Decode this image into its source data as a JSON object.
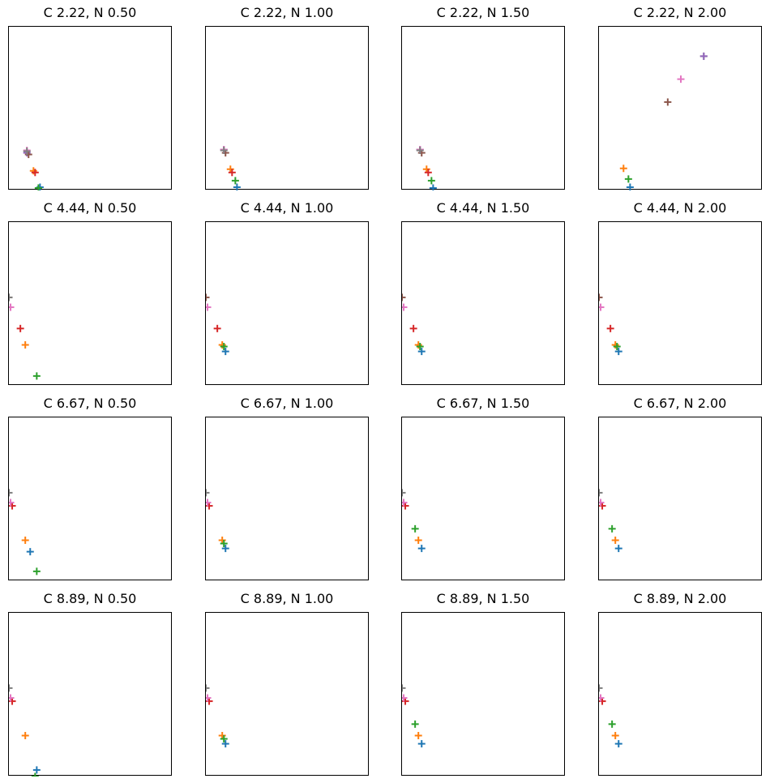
{
  "chart_data": [
    {
      "type": "scatter",
      "title": "C 2.22, N 0.50",
      "xticks": [],
      "yticks": [],
      "marker": "+",
      "points": [
        {
          "x": 0.19,
          "y": 0.02,
          "color": "#1f77b4"
        },
        {
          "x": 0.15,
          "y": 0.12,
          "color": "#ff7f0e"
        },
        {
          "x": 0.18,
          "y": 0.015,
          "color": "#2ca02c"
        },
        {
          "x": 0.16,
          "y": 0.11,
          "color": "#d62728"
        },
        {
          "x": 0.11,
          "y": 0.23,
          "color": "#9467bd"
        },
        {
          "x": 0.12,
          "y": 0.22,
          "color": "#8c564b"
        },
        {
          "x": 0.11,
          "y": 0.245,
          "color": "#e377c2"
        },
        {
          "x": 0.11,
          "y": 0.24,
          "color": "#7f7f7f"
        }
      ]
    },
    {
      "type": "scatter",
      "title": "C 2.22, N 1.00",
      "xticks": [],
      "yticks": [],
      "marker": "+",
      "points": [
        {
          "x": 0.19,
          "y": 0.02,
          "color": "#1f77b4"
        },
        {
          "x": 0.15,
          "y": 0.13,
          "color": "#ff7f0e"
        },
        {
          "x": 0.18,
          "y": 0.06,
          "color": "#2ca02c"
        },
        {
          "x": 0.16,
          "y": 0.11,
          "color": "#d62728"
        },
        {
          "x": 0.11,
          "y": 0.25,
          "color": "#9467bd"
        },
        {
          "x": 0.12,
          "y": 0.23,
          "color": "#8c564b"
        },
        {
          "x": 0.11,
          "y": 0.25,
          "color": "#e377c2"
        },
        {
          "x": 0.11,
          "y": 0.245,
          "color": "#7f7f7f"
        }
      ]
    },
    {
      "type": "scatter",
      "title": "C 2.22, N 1.50",
      "xticks": [],
      "yticks": [],
      "marker": "+",
      "points": [
        {
          "x": 0.19,
          "y": 0.015,
          "color": "#1f77b4"
        },
        {
          "x": 0.15,
          "y": 0.13,
          "color": "#ff7f0e"
        },
        {
          "x": 0.18,
          "y": 0.06,
          "color": "#2ca02c"
        },
        {
          "x": 0.16,
          "y": 0.11,
          "color": "#d62728"
        },
        {
          "x": 0.11,
          "y": 0.25,
          "color": "#9467bd"
        },
        {
          "x": 0.12,
          "y": 0.23,
          "color": "#8c564b"
        },
        {
          "x": 0.11,
          "y": 0.25,
          "color": "#e377c2"
        },
        {
          "x": 0.11,
          "y": 0.245,
          "color": "#7f7f7f"
        }
      ]
    },
    {
      "type": "scatter",
      "title": "C 2.22, N 2.00",
      "xticks": [],
      "yticks": [],
      "marker": "+",
      "points": [
        {
          "x": 0.19,
          "y": 0.02,
          "color": "#1f77b4"
        },
        {
          "x": 0.15,
          "y": 0.135,
          "color": "#ff7f0e"
        },
        {
          "x": 0.18,
          "y": 0.07,
          "color": "#2ca02c"
        },
        {
          "x": 0.42,
          "y": 0.54,
          "color": "#8c564b"
        },
        {
          "x": 0.5,
          "y": 0.68,
          "color": "#e377c2"
        },
        {
          "x": 0.64,
          "y": 0.82,
          "color": "#7f7f7f"
        },
        {
          "x": 0.64,
          "y": 0.82,
          "color": "#9467bd"
        }
      ]
    },
    {
      "type": "scatter",
      "title": "C 4.44, N 0.50",
      "xticks": [],
      "yticks": [],
      "marker": "+",
      "points": [
        {
          "x": 0.17,
          "y": 0.06,
          "color": "#2ca02c"
        },
        {
          "x": 0.1,
          "y": 0.25,
          "color": "#ff7f0e"
        },
        {
          "x": 0.07,
          "y": 0.35,
          "color": "#d62728"
        },
        {
          "x": 0.0,
          "y": 0.54,
          "color": "#8c564b"
        },
        {
          "x": 0.01,
          "y": 0.48,
          "color": "#e377c2"
        },
        {
          "x": 0.0,
          "y": 0.54,
          "color": "#7f7f7f"
        }
      ]
    },
    {
      "type": "scatter",
      "title": "C 4.44, N 1.00",
      "xticks": [],
      "yticks": [],
      "marker": "+",
      "points": [
        {
          "x": 0.12,
          "y": 0.21,
          "color": "#1f77b4"
        },
        {
          "x": 0.1,
          "y": 0.25,
          "color": "#ff7f0e"
        },
        {
          "x": 0.11,
          "y": 0.24,
          "color": "#2ca02c"
        },
        {
          "x": 0.07,
          "y": 0.35,
          "color": "#d62728"
        },
        {
          "x": 0.0,
          "y": 0.54,
          "color": "#8c564b"
        },
        {
          "x": 0.01,
          "y": 0.48,
          "color": "#e377c2"
        }
      ]
    },
    {
      "type": "scatter",
      "title": "C 4.44, N 1.50",
      "xticks": [],
      "yticks": [],
      "marker": "+",
      "points": [
        {
          "x": 0.12,
          "y": 0.21,
          "color": "#1f77b4"
        },
        {
          "x": 0.1,
          "y": 0.25,
          "color": "#ff7f0e"
        },
        {
          "x": 0.11,
          "y": 0.24,
          "color": "#2ca02c"
        },
        {
          "x": 0.07,
          "y": 0.35,
          "color": "#d62728"
        },
        {
          "x": 0.0,
          "y": 0.54,
          "color": "#8c564b"
        },
        {
          "x": 0.01,
          "y": 0.48,
          "color": "#e377c2"
        }
      ]
    },
    {
      "type": "scatter",
      "title": "C 4.44, N 2.00",
      "xticks": [],
      "yticks": [],
      "marker": "+",
      "points": [
        {
          "x": 0.12,
          "y": 0.21,
          "color": "#1f77b4"
        },
        {
          "x": 0.1,
          "y": 0.25,
          "color": "#ff7f0e"
        },
        {
          "x": 0.11,
          "y": 0.24,
          "color": "#2ca02c"
        },
        {
          "x": 0.07,
          "y": 0.35,
          "color": "#d62728"
        },
        {
          "x": 0.0,
          "y": 0.54,
          "color": "#8c564b"
        },
        {
          "x": 0.01,
          "y": 0.48,
          "color": "#e377c2"
        }
      ]
    },
    {
      "type": "scatter",
      "title": "C 6.67, N 0.50",
      "xticks": [],
      "yticks": [],
      "marker": "+",
      "points": [
        {
          "x": 0.13,
          "y": 0.18,
          "color": "#1f77b4"
        },
        {
          "x": 0.1,
          "y": 0.25,
          "color": "#ff7f0e"
        },
        {
          "x": 0.17,
          "y": 0.06,
          "color": "#2ca02c"
        },
        {
          "x": 0.02,
          "y": 0.46,
          "color": "#d62728"
        },
        {
          "x": 0.01,
          "y": 0.48,
          "color": "#e377c2"
        },
        {
          "x": 0.0,
          "y": 0.54,
          "color": "#7f7f7f"
        }
      ]
    },
    {
      "type": "scatter",
      "title": "C 6.67, N 1.00",
      "xticks": [],
      "yticks": [],
      "marker": "+",
      "points": [
        {
          "x": 0.12,
          "y": 0.2,
          "color": "#1f77b4"
        },
        {
          "x": 0.1,
          "y": 0.25,
          "color": "#ff7f0e"
        },
        {
          "x": 0.11,
          "y": 0.23,
          "color": "#2ca02c"
        },
        {
          "x": 0.02,
          "y": 0.46,
          "color": "#d62728"
        },
        {
          "x": 0.01,
          "y": 0.48,
          "color": "#e377c2"
        },
        {
          "x": 0.0,
          "y": 0.54,
          "color": "#7f7f7f"
        }
      ]
    },
    {
      "type": "scatter",
      "title": "C 6.67, N 1.50",
      "xticks": [],
      "yticks": [],
      "marker": "+",
      "points": [
        {
          "x": 0.12,
          "y": 0.2,
          "color": "#1f77b4"
        },
        {
          "x": 0.1,
          "y": 0.25,
          "color": "#ff7f0e"
        },
        {
          "x": 0.08,
          "y": 0.32,
          "color": "#2ca02c"
        },
        {
          "x": 0.02,
          "y": 0.46,
          "color": "#d62728"
        },
        {
          "x": 0.01,
          "y": 0.48,
          "color": "#e377c2"
        },
        {
          "x": 0.0,
          "y": 0.54,
          "color": "#7f7f7f"
        }
      ]
    },
    {
      "type": "scatter",
      "title": "C 6.67, N 2.00",
      "xticks": [],
      "yticks": [],
      "marker": "+",
      "points": [
        {
          "x": 0.12,
          "y": 0.2,
          "color": "#1f77b4"
        },
        {
          "x": 0.1,
          "y": 0.25,
          "color": "#ff7f0e"
        },
        {
          "x": 0.08,
          "y": 0.32,
          "color": "#2ca02c"
        },
        {
          "x": 0.02,
          "y": 0.46,
          "color": "#d62728"
        },
        {
          "x": 0.01,
          "y": 0.48,
          "color": "#e377c2"
        },
        {
          "x": 0.0,
          "y": 0.54,
          "color": "#7f7f7f"
        }
      ]
    },
    {
      "type": "scatter",
      "title": "C 8.89, N 0.50",
      "xticks": [],
      "yticks": [],
      "marker": "+",
      "points": [
        {
          "x": 0.17,
          "y": 0.04,
          "color": "#1f77b4"
        },
        {
          "x": 0.1,
          "y": 0.25,
          "color": "#ff7f0e"
        },
        {
          "x": 0.16,
          "y": 0.0,
          "color": "#2ca02c"
        },
        {
          "x": 0.02,
          "y": 0.46,
          "color": "#d62728"
        },
        {
          "x": 0.01,
          "y": 0.48,
          "color": "#e377c2"
        },
        {
          "x": 0.0,
          "y": 0.54,
          "color": "#7f7f7f"
        }
      ]
    },
    {
      "type": "scatter",
      "title": "C 8.89, N 1.00",
      "xticks": [],
      "yticks": [],
      "marker": "+",
      "points": [
        {
          "x": 0.12,
          "y": 0.2,
          "color": "#1f77b4"
        },
        {
          "x": 0.1,
          "y": 0.25,
          "color": "#ff7f0e"
        },
        {
          "x": 0.11,
          "y": 0.23,
          "color": "#2ca02c"
        },
        {
          "x": 0.02,
          "y": 0.46,
          "color": "#d62728"
        },
        {
          "x": 0.01,
          "y": 0.48,
          "color": "#e377c2"
        },
        {
          "x": 0.0,
          "y": 0.54,
          "color": "#7f7f7f"
        }
      ]
    },
    {
      "type": "scatter",
      "title": "C 8.89, N 1.50",
      "xticks": [],
      "yticks": [],
      "marker": "+",
      "points": [
        {
          "x": 0.12,
          "y": 0.2,
          "color": "#1f77b4"
        },
        {
          "x": 0.1,
          "y": 0.25,
          "color": "#ff7f0e"
        },
        {
          "x": 0.08,
          "y": 0.32,
          "color": "#2ca02c"
        },
        {
          "x": 0.02,
          "y": 0.46,
          "color": "#d62728"
        },
        {
          "x": 0.01,
          "y": 0.48,
          "color": "#e377c2"
        },
        {
          "x": 0.0,
          "y": 0.54,
          "color": "#7f7f7f"
        }
      ]
    },
    {
      "type": "scatter",
      "title": "C 8.89, N 2.00",
      "xticks": [],
      "yticks": [],
      "marker": "+",
      "points": [
        {
          "x": 0.12,
          "y": 0.2,
          "color": "#1f77b4"
        },
        {
          "x": 0.1,
          "y": 0.25,
          "color": "#ff7f0e"
        },
        {
          "x": 0.08,
          "y": 0.32,
          "color": "#2ca02c"
        },
        {
          "x": 0.02,
          "y": 0.46,
          "color": "#d62728"
        },
        {
          "x": 0.01,
          "y": 0.48,
          "color": "#e377c2"
        },
        {
          "x": 0.0,
          "y": 0.54,
          "color": "#7f7f7f"
        }
      ]
    }
  ]
}
